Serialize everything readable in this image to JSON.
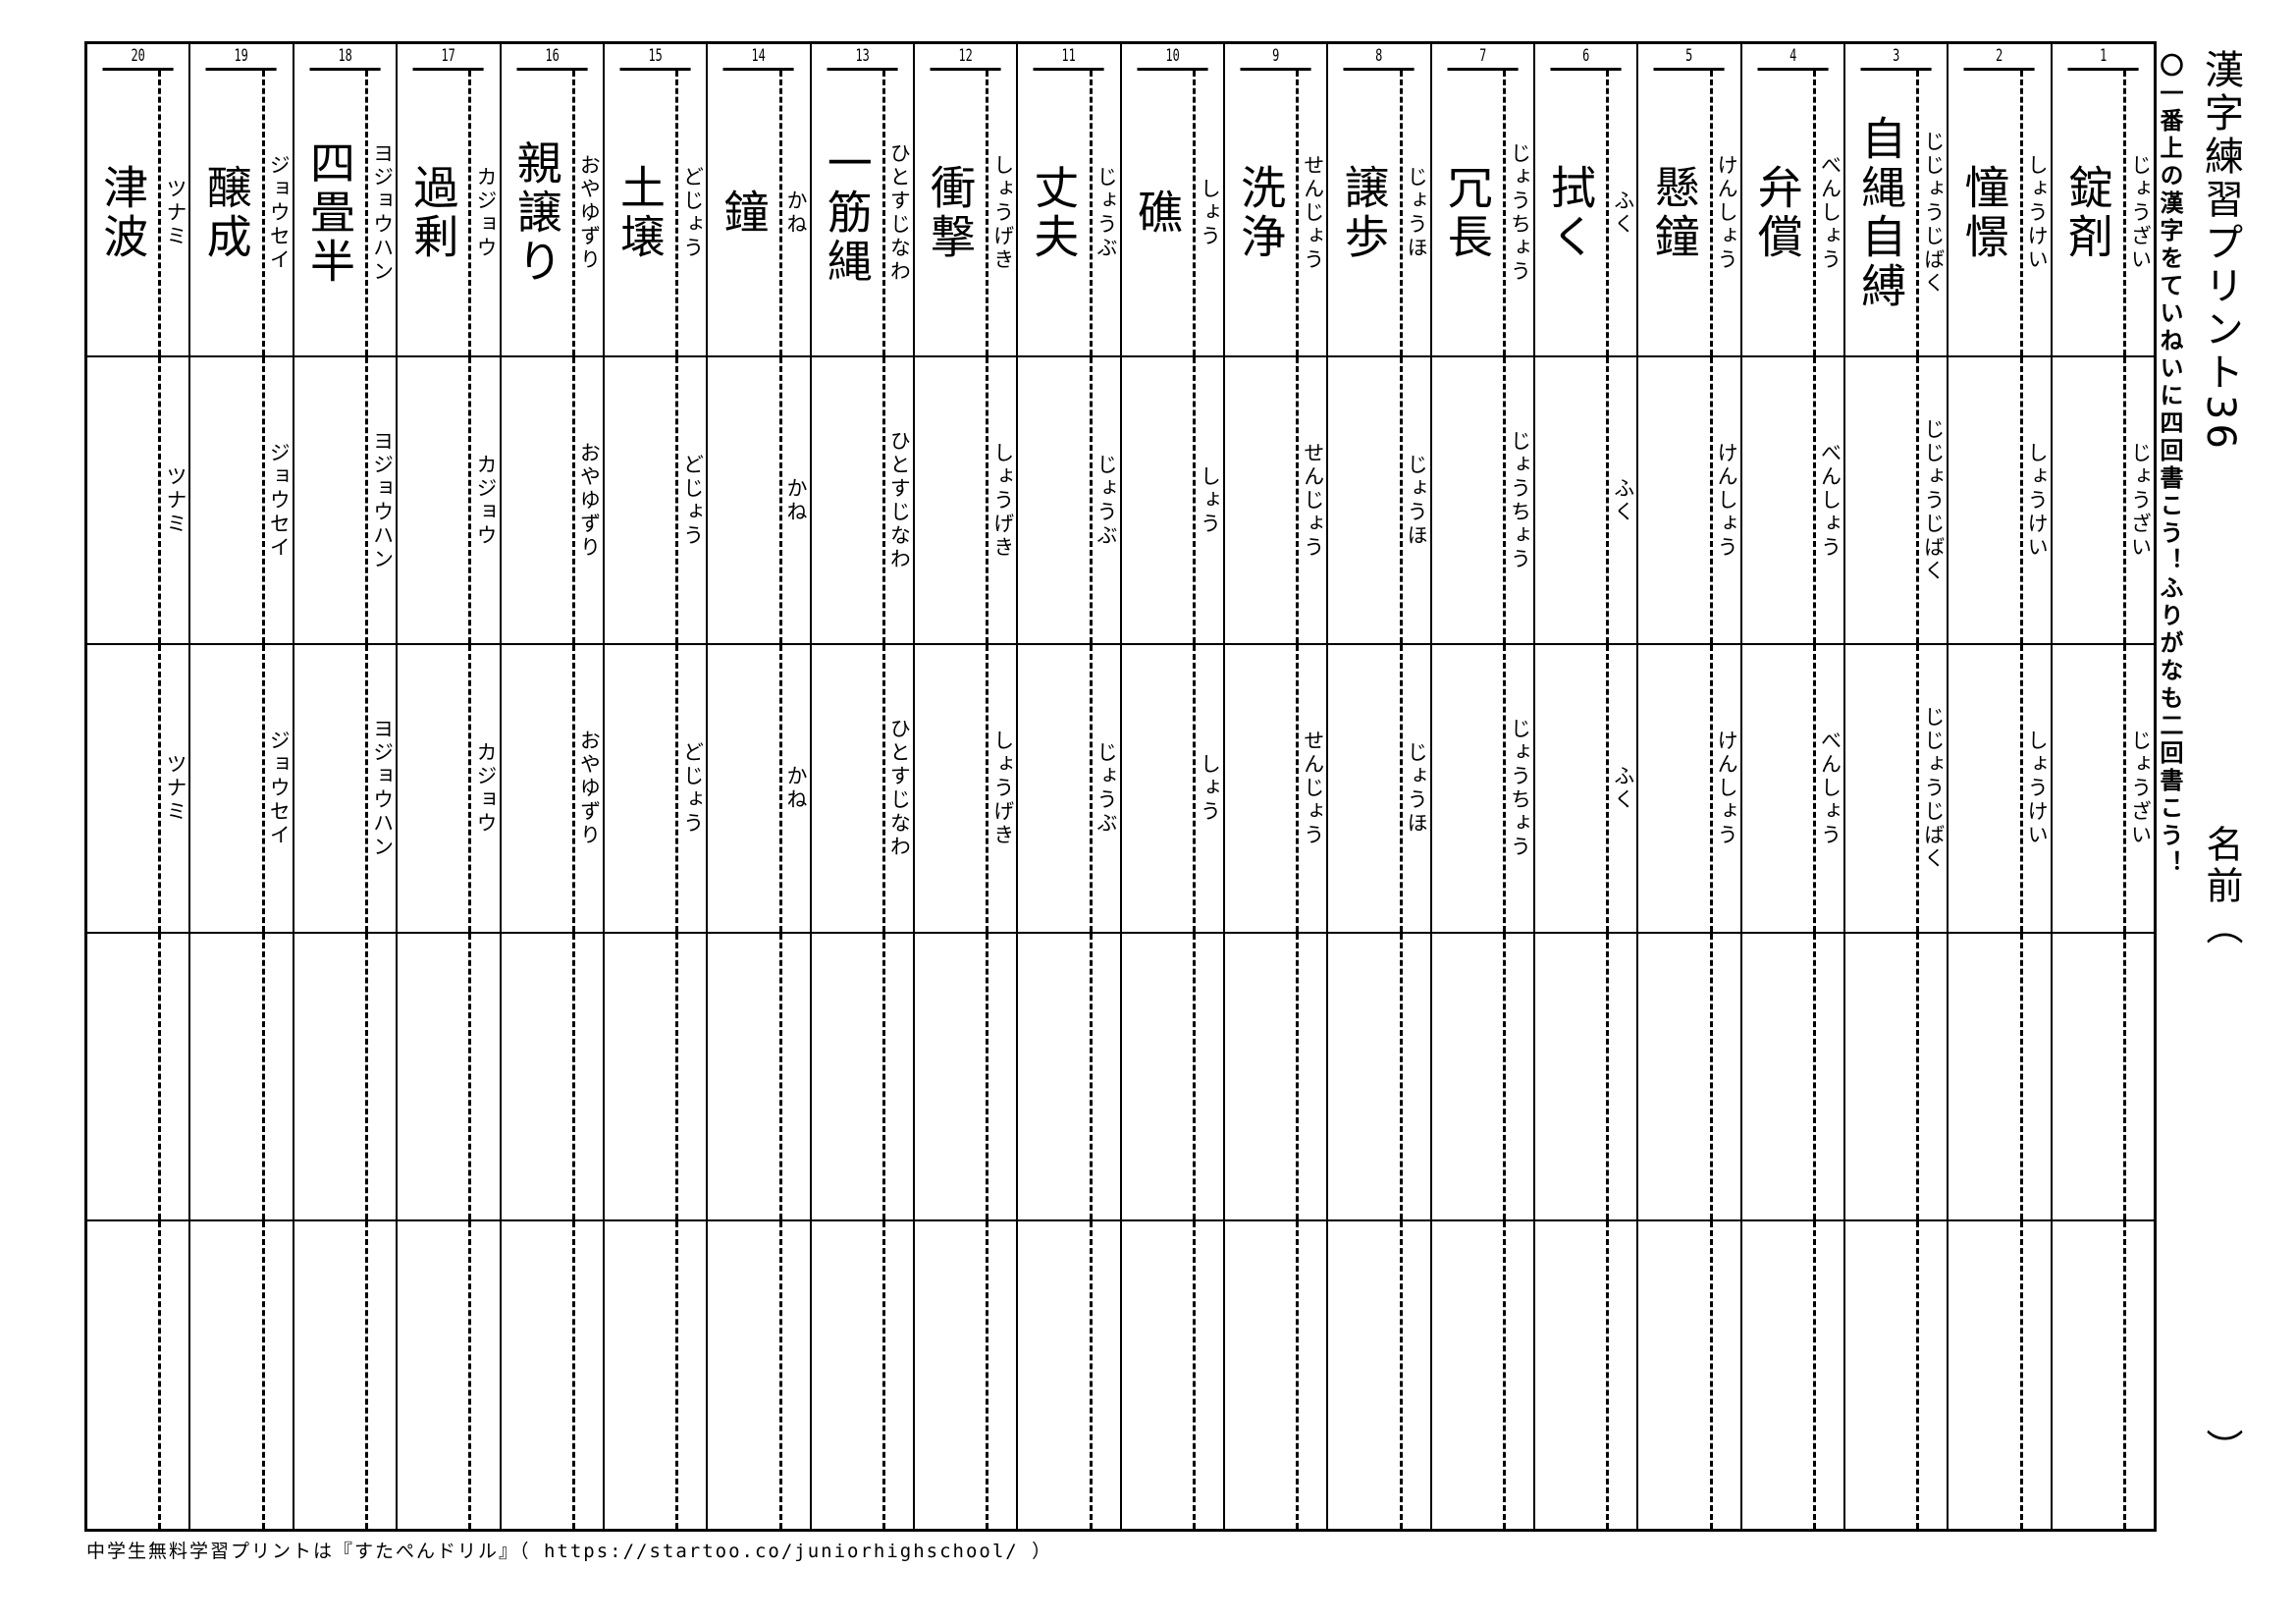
{
  "title": "漢字練習プリント36",
  "instruction": "〇一番上の漢字をていねいに四回書こう！ふりがなも二回書こう！",
  "name_label": "名前（",
  "name_close": "）",
  "footer": "中学生無料学習プリントは『すたぺんドリル』（ https://startoo.co/juniorhighschool/ ）",
  "items": [
    {
      "num": "1",
      "kanji": "錠剤",
      "reading": "じょうざい"
    },
    {
      "num": "2",
      "kanji": "憧憬",
      "reading": "しょうけい"
    },
    {
      "num": "3",
      "kanji": "自縄自縛",
      "reading": "じじょうじばく"
    },
    {
      "num": "4",
      "kanji": "弁償",
      "reading": "べんしょう"
    },
    {
      "num": "5",
      "kanji": "懸鐘",
      "reading": "けんしょう"
    },
    {
      "num": "6",
      "kanji": "拭く",
      "reading": "ふく"
    },
    {
      "num": "7",
      "kanji": "冗長",
      "reading": "じょうちょう"
    },
    {
      "num": "8",
      "kanji": "譲歩",
      "reading": "じょうほ"
    },
    {
      "num": "9",
      "kanji": "洗浄",
      "reading": "せんじょう"
    },
    {
      "num": "10",
      "kanji": "礁",
      "reading": "しょう"
    },
    {
      "num": "11",
      "kanji": "丈夫",
      "reading": "じょうぶ"
    },
    {
      "num": "12",
      "kanji": "衝撃",
      "reading": "しょうげき"
    },
    {
      "num": "13",
      "kanji": "一筋縄",
      "reading": "ひとすじなわ"
    },
    {
      "num": "14",
      "kanji": "鐘",
      "reading": "かね"
    },
    {
      "num": "15",
      "kanji": "土壌",
      "reading": "どじょう"
    },
    {
      "num": "16",
      "kanji": "親譲り",
      "reading": "おやゆずり"
    },
    {
      "num": "17",
      "kanji": "過剰",
      "reading": "カジョウ"
    },
    {
      "num": "18",
      "kanji": "四畳半",
      "reading": "ヨジョウハン"
    },
    {
      "num": "19",
      "kanji": "醸成",
      "reading": "ジョウセイ"
    },
    {
      "num": "20",
      "kanji": "津波",
      "reading": "ツナミ"
    }
  ]
}
